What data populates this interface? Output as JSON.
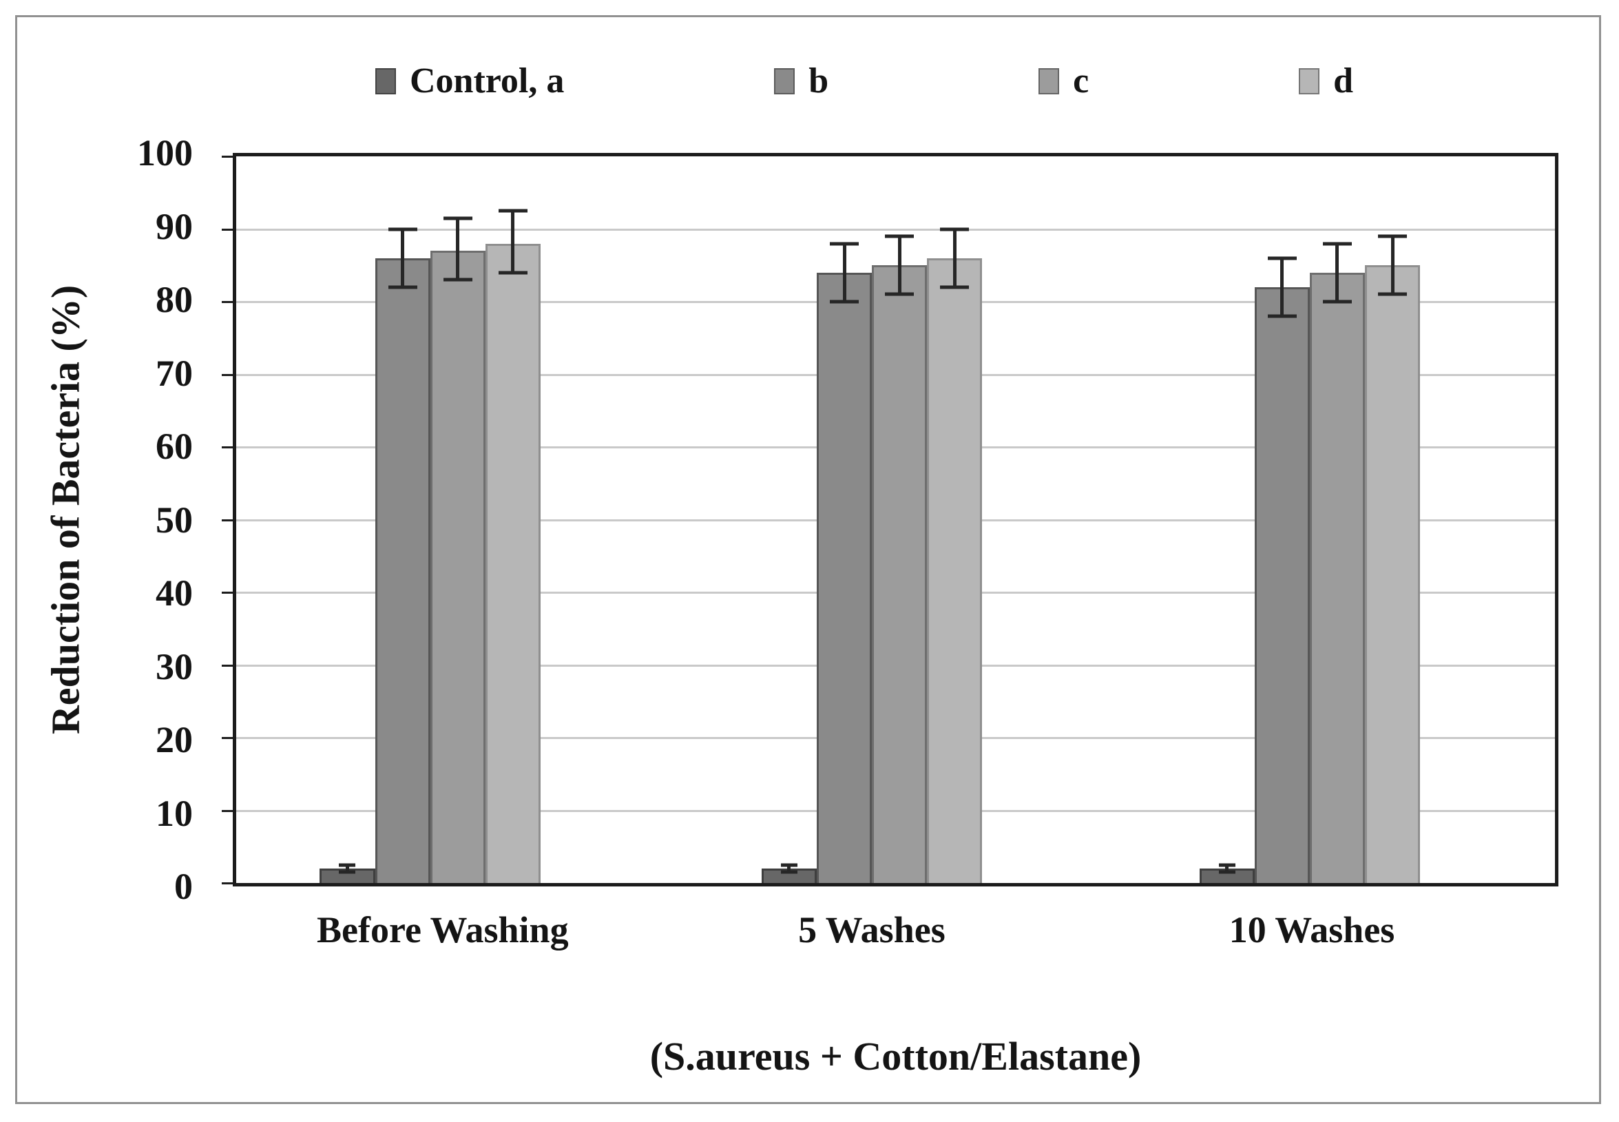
{
  "chart_data": {
    "type": "bar",
    "categories": [
      "Before Washing",
      "5 Washes",
      "10 Washes"
    ],
    "series": [
      {
        "name": "Control, a",
        "color": "#676767",
        "values": [
          2,
          2,
          2
        ],
        "err_low": [
          1.5,
          1.5,
          1.5
        ],
        "err_high": [
          2.5,
          2.5,
          2.5
        ]
      },
      {
        "name": "b",
        "color": "#8a8a8a",
        "values": [
          86,
          84,
          82
        ],
        "err_low": [
          82,
          80,
          78
        ],
        "err_high": [
          90,
          88,
          86
        ]
      },
      {
        "name": "c",
        "color": "#9c9c9c",
        "values": [
          87,
          85,
          84
        ],
        "err_low": [
          83,
          81,
          80
        ],
        "err_high": [
          91.5,
          89,
          88
        ]
      },
      {
        "name": "d",
        "color": "#b6b6b6",
        "values": [
          88,
          86,
          85
        ],
        "err_low": [
          84,
          82,
          81
        ],
        "err_high": [
          92.5,
          90,
          89
        ]
      }
    ],
    "title": "",
    "xlabel": "(S.aureus + Cotton/Elastane)",
    "ylabel": "Reduction of Bacteria (%)",
    "ylim": [
      0,
      100
    ],
    "ytick_step": 10,
    "ytick_labels": [
      "100",
      "90",
      "80",
      "70",
      "60",
      "50",
      "40",
      "30",
      "20",
      "10",
      "0"
    ],
    "grid": true,
    "legend_position": "top"
  }
}
